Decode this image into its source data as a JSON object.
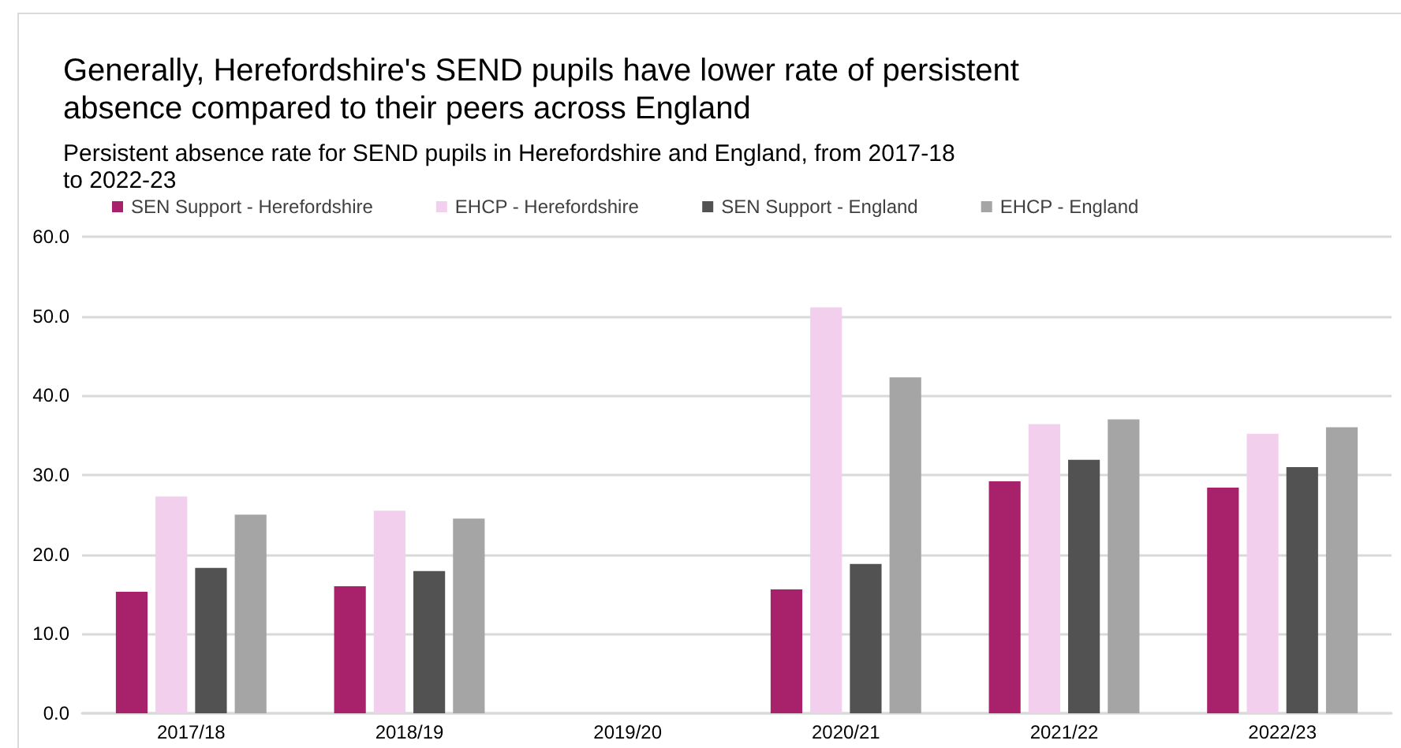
{
  "chart_data": {
    "type": "bar",
    "title": "Generally, Herefordshire's SEND pupils have lower rate of persistent absence compared to their peers across England",
    "subtitle": "Persistent absence rate for SEND pupils in Herefordshire and England, from 2017-18 to 2022-23",
    "categories": [
      "2017/18",
      "2018/19",
      "2019/20",
      "2020/21",
      "2021/22",
      "2022/23"
    ],
    "series": [
      {
        "name": "SEN Support - Herefordshire",
        "color": "#a8216b",
        "values": [
          15.3,
          16.0,
          null,
          15.6,
          29.2,
          28.4
        ]
      },
      {
        "name": "EHCP - Herefordshire",
        "color": "#f2cfed",
        "values": [
          27.3,
          25.5,
          null,
          51.1,
          36.4,
          35.2
        ]
      },
      {
        "name": "SEN Support - England",
        "color": "#525252",
        "values": [
          18.3,
          17.9,
          null,
          18.8,
          31.9,
          31.0
        ]
      },
      {
        "name": "EHCP - England",
        "color": "#a5a5a5",
        "values": [
          25.0,
          24.5,
          null,
          42.3,
          37.0,
          36.0
        ]
      }
    ],
    "ylim": [
      0,
      60
    ],
    "yticks": [
      {
        "value": 0,
        "label": "0.0"
      },
      {
        "value": 10,
        "label": "10.0"
      },
      {
        "value": 20,
        "label": "20.0"
      },
      {
        "value": 30,
        "label": "30.0"
      },
      {
        "value": 40,
        "label": "40.0"
      },
      {
        "value": 50,
        "label": "50.0"
      },
      {
        "value": 60,
        "label": "60.0"
      }
    ],
    "grid": "y",
    "legend": "top"
  }
}
